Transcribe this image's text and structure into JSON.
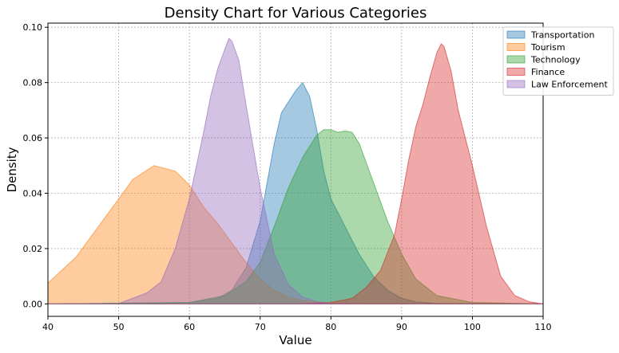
{
  "chart_data": {
    "type": "area",
    "title": "Density Chart for Various Categories",
    "xlabel": "Value",
    "ylabel": "Density",
    "xlim": [
      40,
      110
    ],
    "ylim": [
      -0.0045,
      0.1015
    ],
    "x_ticks": [
      40,
      50,
      60,
      70,
      80,
      90,
      100,
      110
    ],
    "x_tick_labels": [
      "40",
      "50",
      "60",
      "70",
      "80",
      "90",
      "100",
      "110"
    ],
    "y_ticks": [
      0.0,
      0.02,
      0.04,
      0.06,
      0.08,
      0.1
    ],
    "y_tick_labels": [
      "0.00",
      "0.02",
      "0.04",
      "0.06",
      "0.08",
      "0.10"
    ],
    "grid": true,
    "legend_position": "top-right",
    "series": [
      {
        "name": "Transportation",
        "color": "#1f77b4",
        "x": [
          40,
          60,
          64,
          66,
          68,
          70,
          72,
          73,
          74,
          75,
          76,
          77,
          78,
          79,
          80,
          82,
          84,
          86,
          88,
          90,
          92,
          95,
          110
        ],
        "y": [
          0,
          0.0005,
          0.002,
          0.005,
          0.013,
          0.03,
          0.058,
          0.069,
          0.073,
          0.077,
          0.08,
          0.075,
          0.063,
          0.048,
          0.038,
          0.028,
          0.018,
          0.01,
          0.005,
          0.002,
          0.0007,
          0.0002,
          0
        ]
      },
      {
        "name": "Tourism",
        "color": "#ff7f0e",
        "x": [
          40,
          44,
          48,
          52,
          55,
          58,
          60,
          62,
          64,
          66,
          68,
          70,
          72,
          74,
          76,
          80,
          85,
          90,
          110
        ],
        "y": [
          0.0075,
          0.017,
          0.031,
          0.045,
          0.05,
          0.048,
          0.043,
          0.035,
          0.029,
          0.022,
          0.015,
          0.009,
          0.005,
          0.0025,
          0.0012,
          0.0003,
          8e-05,
          2e-05,
          0
        ]
      },
      {
        "name": "Technology",
        "color": "#2ca02c",
        "x": [
          40,
          60,
          65,
          68,
          70,
          72,
          74,
          76,
          78,
          79,
          80,
          81,
          82,
          83,
          84,
          86,
          88,
          90,
          92,
          95,
          100,
          110
        ],
        "y": [
          0,
          0.0005,
          0.003,
          0.008,
          0.015,
          0.028,
          0.042,
          0.053,
          0.061,
          0.063,
          0.063,
          0.062,
          0.0625,
          0.062,
          0.058,
          0.044,
          0.03,
          0.018,
          0.009,
          0.003,
          0.0005,
          0
        ]
      },
      {
        "name": "Finance",
        "color": "#d62728",
        "x": [
          40,
          75,
          80,
          83,
          85,
          87,
          89,
          90,
          91,
          92,
          93,
          94,
          95,
          95.6,
          96,
          97,
          98,
          100,
          102,
          104,
          106,
          108,
          110
        ],
        "y": [
          0,
          0,
          0.0005,
          0.002,
          0.006,
          0.012,
          0.025,
          0.038,
          0.052,
          0.064,
          0.072,
          0.082,
          0.091,
          0.094,
          0.093,
          0.084,
          0.07,
          0.05,
          0.028,
          0.01,
          0.003,
          0.0008,
          0
        ]
      },
      {
        "name": "Law Enforcement",
        "color": "#9467bd",
        "x": [
          40,
          50,
          52,
          54,
          56,
          58,
          60,
          62,
          63,
          64,
          65,
          65.6,
          66,
          67,
          68,
          70,
          72,
          74,
          76,
          78,
          80,
          85,
          110
        ],
        "y": [
          0,
          0.0002,
          0.002,
          0.004,
          0.008,
          0.02,
          0.038,
          0.062,
          0.075,
          0.085,
          0.092,
          0.096,
          0.095,
          0.088,
          0.072,
          0.042,
          0.018,
          0.007,
          0.0025,
          0.0008,
          0.0002,
          2e-05,
          0
        ]
      }
    ]
  }
}
